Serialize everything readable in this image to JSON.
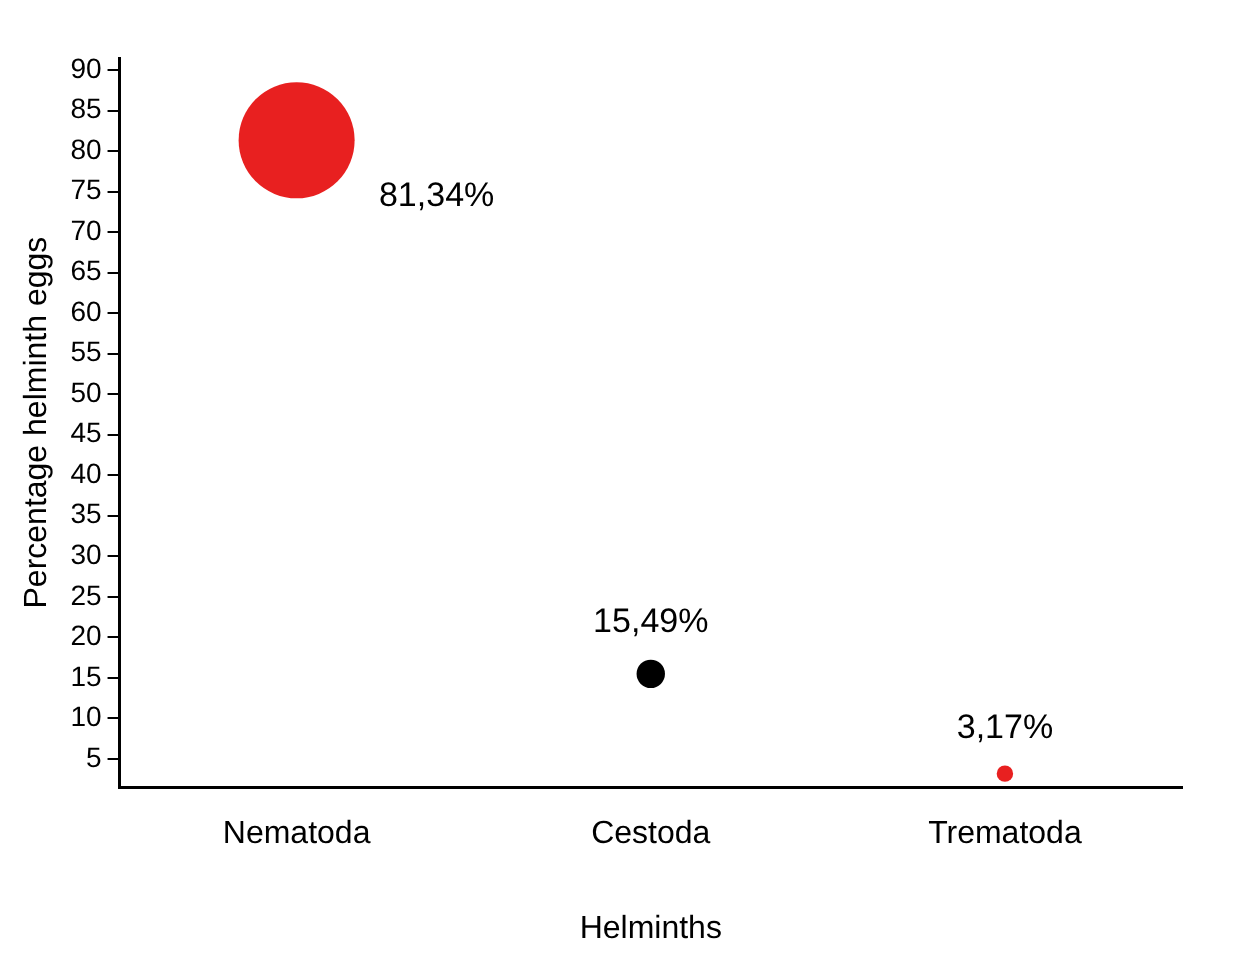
{
  "chart_data": {
    "type": "bubble",
    "xlabel": "Helminths",
    "ylabel": "Percentage helminth eggs",
    "categories": [
      "Nematoda",
      "Cestoda",
      "Trematoda"
    ],
    "values": [
      81.34,
      15.49,
      3.17
    ],
    "sizes": [
      1,
      0.06,
      0.02
    ],
    "colors": [
      "#e82020",
      "#000000",
      "#e82020"
    ],
    "value_labels": [
      "81,34%",
      "15,49%",
      "3,17%"
    ],
    "ylim": [
      1.5,
      91.5
    ],
    "yticks": [
      5,
      10,
      15,
      20,
      25,
      30,
      35,
      40,
      45,
      50,
      55,
      60,
      65,
      70,
      75,
      80,
      85,
      90
    ],
    "grid": false,
    "legend": false
  }
}
